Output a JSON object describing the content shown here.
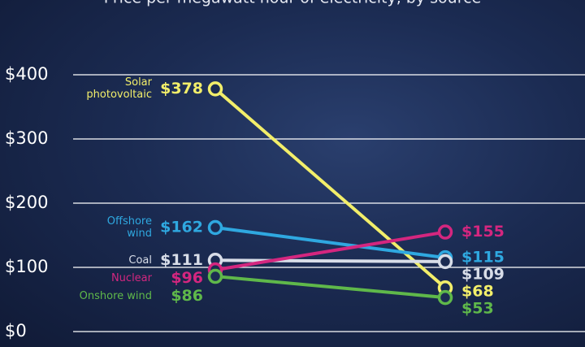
{
  "chart_data": {
    "type": "slope",
    "subtitle": "Price per megawatt hour of electricity, by source",
    "ylim": [
      0,
      400
    ],
    "yticks": [
      {
        "value": 0,
        "label": "$0"
      },
      {
        "value": 100,
        "label": "$100"
      },
      {
        "value": 200,
        "label": "$200"
      },
      {
        "value": 300,
        "label": "$300"
      },
      {
        "value": 400,
        "label": "$400"
      }
    ],
    "grid": true,
    "series": [
      {
        "name": "Solar photovoltaic",
        "color": "#f2ee6a",
        "values": [
          378,
          68
        ],
        "value_labels": [
          "$378",
          "$68"
        ]
      },
      {
        "name": "Offshore wind",
        "color": "#2fa8e0",
        "values": [
          162,
          115
        ],
        "value_labels": [
          "$162",
          "$115"
        ]
      },
      {
        "name": "Coal",
        "color": "#d8dde8",
        "values": [
          111,
          109
        ],
        "value_labels": [
          "$111",
          "$109"
        ]
      },
      {
        "name": "Nuclear",
        "color": "#d4267f",
        "values": [
          96,
          155
        ],
        "value_labels": [
          "$96",
          "$155"
        ]
      },
      {
        "name": "Onshore wind",
        "color": "#5fb84a",
        "values": [
          86,
          53
        ],
        "value_labels": [
          "$86",
          "$53"
        ]
      }
    ]
  }
}
